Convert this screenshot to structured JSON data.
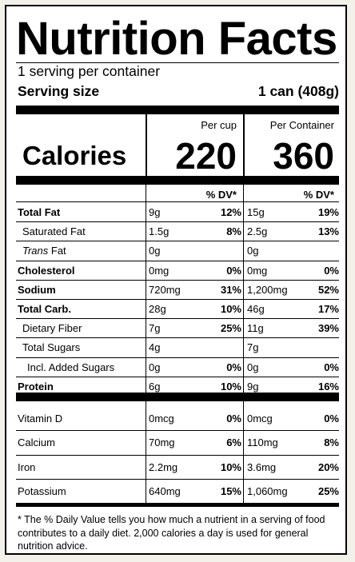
{
  "title": "Nutrition Facts",
  "servings": "1 serving per container",
  "serving_size_label": "Serving size",
  "serving_size_value": "1 can (408g)",
  "calories_label": "Calories",
  "columns": {
    "per_cup_header": "Per cup",
    "per_container_header": "Per Container",
    "per_cup_calories": "220",
    "per_container_calories": "360",
    "dv_header": "% DV*"
  },
  "nutrients": [
    {
      "name": "Total Fat",
      "bold": true,
      "indent": 0,
      "cup_amt": "9g",
      "cup_dv": "12%",
      "cont_amt": "15g",
      "cont_dv": "19%"
    },
    {
      "name": "Saturated Fat",
      "bold": false,
      "indent": 1,
      "cup_amt": "1.5g",
      "cup_dv": "8%",
      "cont_amt": "2.5g",
      "cont_dv": "13%"
    },
    {
      "name_prefix": "Trans",
      "name_suffix": " Fat",
      "bold": false,
      "indent": 1,
      "cup_amt": "0g",
      "cup_dv": "",
      "cont_amt": "0g",
      "cont_dv": ""
    },
    {
      "name": "Cholesterol",
      "bold": true,
      "indent": 0,
      "cup_amt": "0mg",
      "cup_dv": "0%",
      "cont_amt": "0mg",
      "cont_dv": "0%"
    },
    {
      "name": "Sodium",
      "bold": true,
      "indent": 0,
      "cup_amt": "720mg",
      "cup_dv": "31%",
      "cont_amt": "1,200mg",
      "cont_dv": "52%"
    },
    {
      "name": "Total Carb.",
      "bold": true,
      "indent": 0,
      "cup_amt": "28g",
      "cup_dv": "10%",
      "cont_amt": "46g",
      "cont_dv": "17%"
    },
    {
      "name": "Dietary Fiber",
      "bold": false,
      "indent": 1,
      "cup_amt": "7g",
      "cup_dv": "25%",
      "cont_amt": "11g",
      "cont_dv": "39%"
    },
    {
      "name": "Total Sugars",
      "bold": false,
      "indent": 1,
      "cup_amt": "4g",
      "cup_dv": "",
      "cont_amt": "7g",
      "cont_dv": ""
    },
    {
      "name": "Incl. Added Sugars",
      "bold": false,
      "indent": 2,
      "cup_amt": "0g",
      "cup_dv": "0%",
      "cont_amt": "0g",
      "cont_dv": "0%"
    },
    {
      "name": "Protein",
      "bold": true,
      "indent": 0,
      "cup_amt": "6g",
      "cup_dv": "10%",
      "cont_amt": "9g",
      "cont_dv": "16%"
    }
  ],
  "vitamins": [
    {
      "name": "Vitamin D",
      "cup_amt": "0mcg",
      "cup_dv": "0%",
      "cont_amt": "0mcg",
      "cont_dv": "0%"
    },
    {
      "name": "Calcium",
      "cup_amt": "70mg",
      "cup_dv": "6%",
      "cont_amt": "110mg",
      "cont_dv": "8%"
    },
    {
      "name": "Iron",
      "cup_amt": "2.2mg",
      "cup_dv": "10%",
      "cont_amt": "3.6mg",
      "cont_dv": "20%"
    },
    {
      "name": "Potassium",
      "cup_amt": "640mg",
      "cup_dv": "15%",
      "cont_amt": "1,060mg",
      "cont_dv": "25%"
    }
  ],
  "footnote": "* The % Daily Value tells you how much a nutrient in a serving of food contributes to a daily diet. 2,000 calories a day is used for general nutrition advice."
}
